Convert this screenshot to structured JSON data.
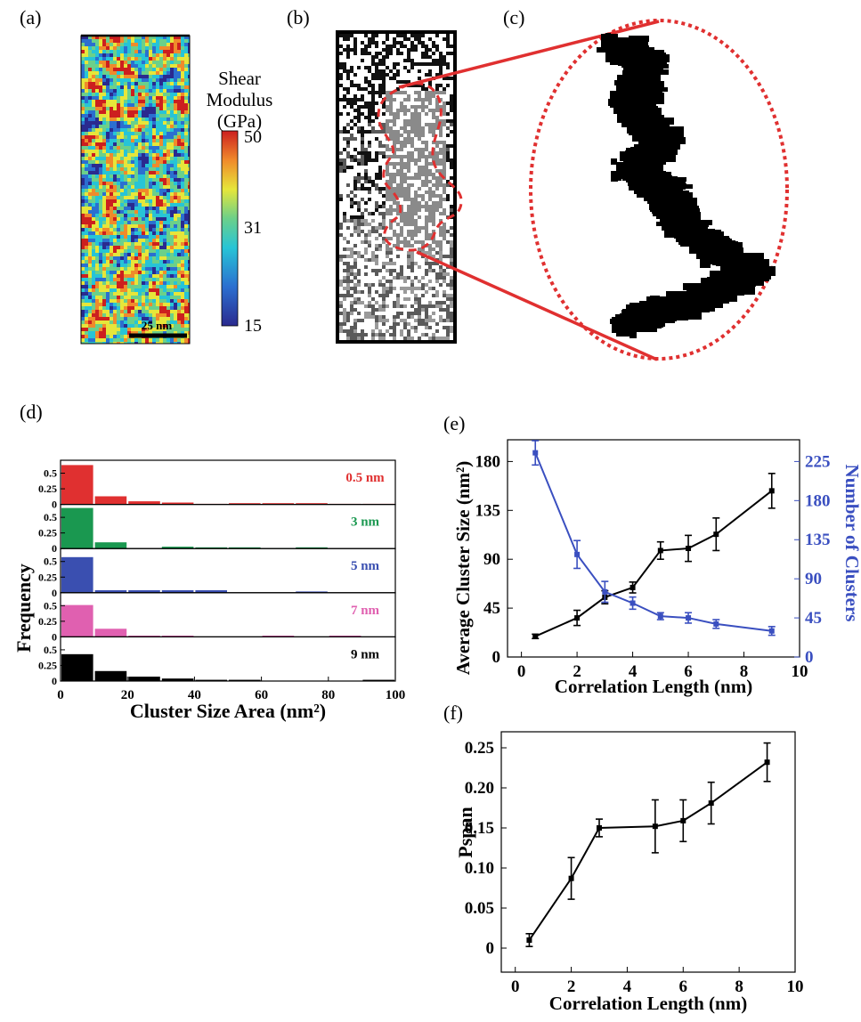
{
  "panels": {
    "a": {
      "label": "(a)",
      "colorbar_title_lines": [
        "Shear",
        "Modulus",
        "(GPa)"
      ],
      "colorbar_ticks": [
        "50",
        "31",
        "15"
      ],
      "colorbar_range": [
        15,
        50
      ],
      "scale_bar": "25 nm",
      "colormap": [
        "#2a2a8f",
        "#2b6fd0",
        "#27c4d6",
        "#6bd08a",
        "#e6e63a",
        "#f08a2b",
        "#cc1f1f"
      ]
    },
    "b": {
      "label": "(b)"
    },
    "c": {
      "label": "(c)"
    },
    "d": {
      "label": "(d)"
    },
    "e": {
      "label": "(e)"
    },
    "f": {
      "label": "(f)"
    }
  },
  "colors": {
    "series_05": "#e03030",
    "series_3": "#1a9850",
    "series_5": "#3a4fb0",
    "series_7": "#e060b0",
    "series_9": "#000000",
    "clusters_line": "#3a4fc0",
    "highlight": "#e03030"
  },
  "chart_data": [
    {
      "id": "d",
      "type": "bar",
      "xlabel": "Cluster Size Area (nm²)",
      "ylabel": "Frequency",
      "x_ticks": [
        "0",
        "20",
        "40",
        "60",
        "80",
        "100"
      ],
      "xlim": [
        0,
        100
      ],
      "bin_width": 10,
      "bin_centers": [
        5,
        15,
        25,
        35,
        45,
        55,
        65,
        75,
        85,
        95
      ],
      "y_ticks": [
        "0",
        "0.25",
        "0.5"
      ],
      "ylim": [
        0,
        0.65
      ],
      "series": [
        {
          "name": "0.5 nm",
          "color": "#e03030",
          "values": [
            0.63,
            0.13,
            0.05,
            0.03,
            0.01,
            0.02,
            0.02,
            0.02,
            0.01,
            0.01
          ]
        },
        {
          "name": "3 nm",
          "color": "#1a9850",
          "values": [
            0.65,
            0.1,
            0.0,
            0.03,
            0.02,
            0.02,
            0.01,
            0.02,
            0.0,
            0.0
          ]
        },
        {
          "name": "5 nm",
          "color": "#3a4fb0",
          "values": [
            0.57,
            0.04,
            0.04,
            0.04,
            0.04,
            0.0,
            0.0,
            0.02,
            0.0,
            0.0
          ]
        },
        {
          "name": "7 nm",
          "color": "#e060b0",
          "values": [
            0.51,
            0.13,
            0.02,
            0.02,
            0.0,
            0.0,
            0.02,
            0.0,
            0.02,
            0.0
          ]
        },
        {
          "name": "9 nm",
          "color": "#000000",
          "values": [
            0.43,
            0.16,
            0.07,
            0.04,
            0.02,
            0.02,
            0.0,
            0.0,
            0.0,
            0.02
          ]
        }
      ]
    },
    {
      "id": "e",
      "type": "line",
      "xlabel": "Correlation Length (nm)",
      "ylabel": "Average Cluster Size (nm²)",
      "ylabel_right": "Number of Clusters",
      "xlim": [
        -0.5,
        10
      ],
      "x_ticks": [
        "0",
        "2",
        "4",
        "6",
        "8",
        "10"
      ],
      "ylim": [
        0,
        200
      ],
      "y_ticks": [
        "0",
        "45",
        "90",
        "135",
        "180"
      ],
      "ylim_right": [
        0,
        250
      ],
      "y_ticks_right": [
        "0",
        "45",
        "90",
        "135",
        "180",
        "225"
      ],
      "series": [
        {
          "name": "Average Cluster Size",
          "axis": "left",
          "color": "#000000",
          "x": [
            0.5,
            2,
            3,
            4,
            5,
            6,
            7,
            9
          ],
          "y": [
            19,
            36,
            55,
            64,
            98,
            100,
            113,
            153
          ],
          "err": [
            2,
            7,
            6,
            5,
            8,
            12,
            15,
            16
          ]
        },
        {
          "name": "Number of Clusters",
          "axis": "right",
          "color": "#3a4fc0",
          "x": [
            0.5,
            2,
            3,
            4,
            5,
            6,
            7,
            9
          ],
          "y": [
            235,
            118,
            75,
            62,
            47,
            45,
            38,
            30
          ],
          "err": [
            14,
            16,
            12,
            7,
            4,
            6,
            5,
            5
          ]
        }
      ]
    },
    {
      "id": "f",
      "type": "line",
      "xlabel": "Correlation Length (nm)",
      "ylabel": "Pspan",
      "xlim": [
        -0.5,
        10
      ],
      "x_ticks": [
        "0",
        "2",
        "4",
        "6",
        "8",
        "10"
      ],
      "ylim": [
        -0.03,
        0.27
      ],
      "y_ticks": [
        "0",
        "0.05",
        "0.10",
        "0.15",
        "0.20",
        "0.25"
      ],
      "series": [
        {
          "name": "Pspan",
          "color": "#000000",
          "x": [
            0.5,
            2,
            3,
            5,
            6,
            7,
            9
          ],
          "y": [
            0.01,
            0.087,
            0.15,
            0.152,
            0.159,
            0.181,
            0.232
          ],
          "err": [
            0.008,
            0.026,
            0.011,
            0.033,
            0.026,
            0.026,
            0.024
          ]
        }
      ]
    }
  ]
}
